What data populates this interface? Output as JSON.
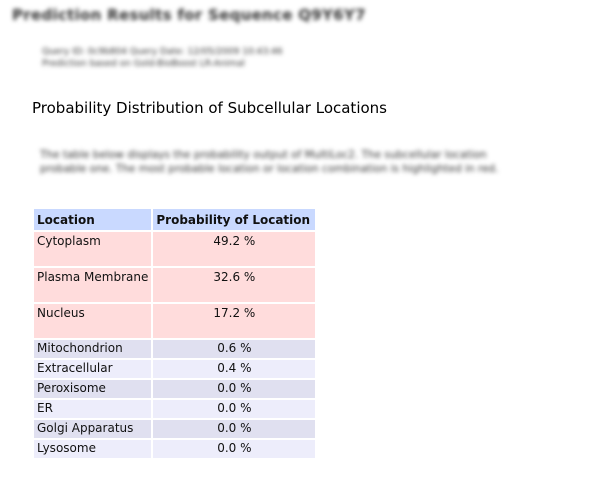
{
  "page": {
    "title": "Prediction Results for Sequence Q9Y6Y7",
    "query_info": [
      "Query ID: 0c9b804 Query Date: 12/05/2009 10:43:46",
      "Prediction based on Gold-BioBoost LR-Animal"
    ]
  },
  "section": {
    "heading": "Probability Distribution of Subcellular Locations",
    "description": [
      "The table below displays the probability output of MultiLoc2. The subcellular location",
      "probable one. The most probable location or location combination is highlighted in red."
    ]
  },
  "table": {
    "headers": [
      "Location",
      "Probability of Location"
    ],
    "rows": [
      {
        "location": "Cytoplasm",
        "probability": "49.2 %",
        "highlight": true
      },
      {
        "location": "Plasma Membrane",
        "probability": "32.6 %",
        "highlight": true
      },
      {
        "location": "Nucleus",
        "probability": "17.2 %",
        "highlight": true
      },
      {
        "location": "Mitochondrion",
        "probability": "0.6 %",
        "highlight": false
      },
      {
        "location": "Extracellular",
        "probability": "0.4 %",
        "highlight": false
      },
      {
        "location": "Peroxisome",
        "probability": "0.0 %",
        "highlight": false
      },
      {
        "location": "ER",
        "probability": "0.0 %",
        "highlight": false
      },
      {
        "location": "Golgi Apparatus",
        "probability": "0.0 %",
        "highlight": false
      },
      {
        "location": "Lysosome",
        "probability": "0.0 %",
        "highlight": false
      }
    ]
  },
  "colors": {
    "header_bg": "#c9d9ff",
    "highlight_bg": "#ffdcdc",
    "row_bg_odd": "#e0e0f0",
    "row_bg_even": "#ededfb"
  }
}
